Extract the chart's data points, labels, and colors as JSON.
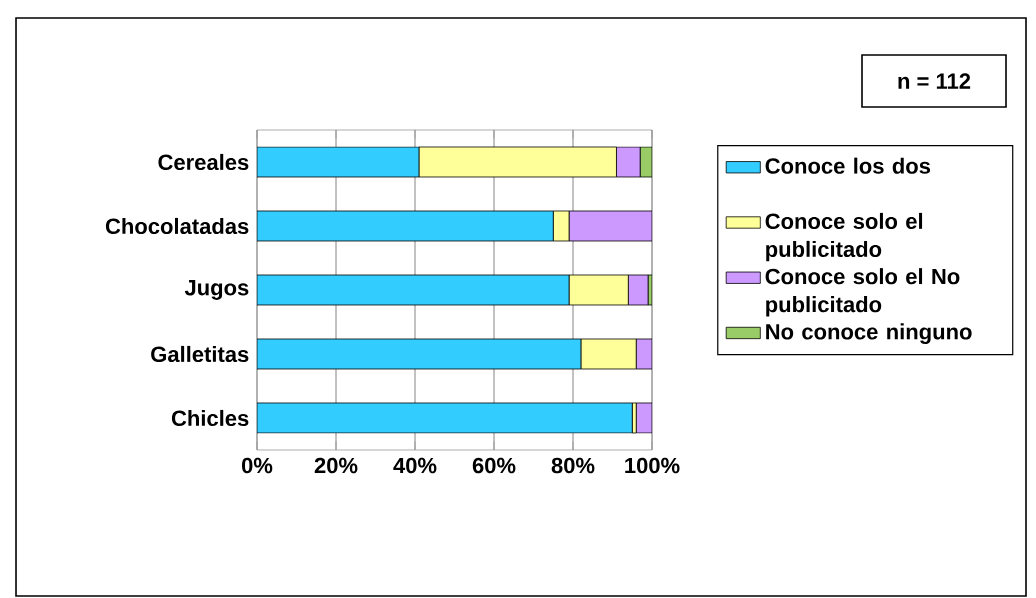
{
  "chart_data": {
    "type": "bar",
    "orientation": "horizontal",
    "stacked": true,
    "categories": [
      "Cereales",
      "Chocolatadas",
      "Jugos",
      "Galletitas",
      "Chicles"
    ],
    "series": [
      {
        "name": "Conoce los dos",
        "color": "#33ccff",
        "values": [
          41,
          75,
          79,
          82,
          95
        ]
      },
      {
        "name": "Conoce solo el publicitado",
        "color": "#ffff99",
        "values": [
          50,
          4,
          15,
          14,
          1
        ]
      },
      {
        "name": "Conoce solo el No publicitado",
        "color": "#cc99ff",
        "values": [
          6,
          21,
          5,
          4,
          4
        ]
      },
      {
        "name": "No conoce ninguno",
        "color": "#99cc66",
        "values": [
          3,
          0,
          1,
          0,
          0
        ]
      }
    ],
    "xlim": [
      0,
      100
    ],
    "xticks": [
      {
        "value": 0,
        "label": "0%"
      },
      {
        "value": 20,
        "label": "20%"
      },
      {
        "value": 40,
        "label": "40%"
      },
      {
        "value": 60,
        "label": "60%"
      },
      {
        "value": 80,
        "label": "80%"
      },
      {
        "value": 100,
        "label": "100%"
      }
    ],
    "grid": "x",
    "legend": "right",
    "annotations": [
      "n = 112"
    ]
  }
}
